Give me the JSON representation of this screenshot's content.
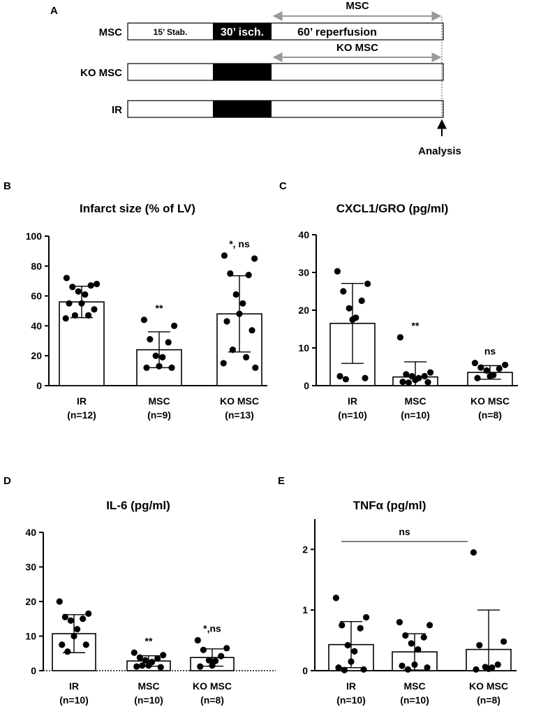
{
  "protocol": {
    "panel_label": "A",
    "rows": [
      {
        "label": "MSC",
        "segments": {
          "stab": "15’ Stab.",
          "isch": "30’ isch.",
          "reperf": "60’ reperfusion"
        },
        "arrow_label": "MSC"
      },
      {
        "label": "KO MSC",
        "segments": {
          "stab": "",
          "isch": "",
          "reperf": ""
        },
        "arrow_label": "KO MSC"
      },
      {
        "label": "IR",
        "segments": {
          "stab": "",
          "isch": "",
          "reperf": ""
        },
        "arrow_label": ""
      }
    ],
    "analysis_label": "Analysis"
  },
  "chart_data": [
    {
      "panel": "B",
      "type": "bar",
      "title": "Infarct size (% of LV)",
      "xlabel": "",
      "ylabel": "",
      "ylim": [
        0,
        100
      ],
      "yticks": [
        "0",
        "20",
        "40",
        "60",
        "80",
        "100"
      ],
      "categories": [
        {
          "name": "IR",
          "n": "(n=12)"
        },
        {
          "name": "MSC",
          "n": "(n=9)"
        },
        {
          "name": "KO MSC",
          "n": "(n=13)"
        }
      ],
      "values": [
        56,
        24,
        48
      ],
      "errors": [
        10.5,
        12,
        25.5
      ],
      "significance": [
        "",
        "**",
        "*, ns"
      ],
      "points": [
        [
          72,
          68,
          66,
          67,
          63,
          61,
          55,
          55,
          51,
          47,
          47,
          45
        ],
        [
          44,
          40,
          31,
          29,
          20,
          19,
          13,
          12,
          12
        ],
        [
          87,
          85,
          75,
          74,
          61,
          55,
          48,
          43,
          37,
          24,
          19,
          15,
          12
        ]
      ],
      "grid": false
    },
    {
      "panel": "C",
      "type": "bar",
      "title": "CXCL1/GRO (pg/ml)",
      "xlabel": "",
      "ylabel": "",
      "ylim": [
        0,
        40
      ],
      "yticks": [
        "0",
        "10",
        "20",
        "30",
        "40"
      ],
      "categories": [
        {
          "name": "IR",
          "n": "(n=10)"
        },
        {
          "name": "MSC",
          "n": "(n=10)"
        },
        {
          "name": "KO MSC",
          "n": "(n=8)"
        }
      ],
      "values": [
        16.5,
        2.3,
        3.5
      ],
      "errors": [
        10.6,
        4,
        1.8
      ],
      "significance": [
        "",
        "**",
        "ns"
      ],
      "points": [
        [
          30.3,
          27,
          25,
          22.5,
          20.5,
          18,
          17.5,
          2.5,
          2,
          1.7
        ],
        [
          12.8,
          3.5,
          3,
          2.5,
          2.5,
          2,
          1.5,
          1,
          0.9,
          0.8
        ],
        [
          6,
          5.5,
          4.8,
          4.5,
          4,
          2.8,
          2.5,
          2
        ]
      ],
      "grid": false
    },
    {
      "panel": "D",
      "type": "bar",
      "title": "IL-6 (pg/ml)",
      "xlabel": "",
      "ylabel": "",
      "ylim": [
        0,
        40
      ],
      "yticks": [
        "0",
        "10",
        "20",
        "30",
        "40"
      ],
      "categories": [
        {
          "name": "IR",
          "n": "(n=10)"
        },
        {
          "name": "MSC",
          "n": "(n=10)"
        },
        {
          "name": "KO MSC",
          "n": "(n=8)"
        }
      ],
      "values": [
        10.7,
        2.8,
        3.8
      ],
      "errors": [
        5.5,
        1.5,
        2.5
      ],
      "significance": [
        "",
        "**",
        "*,ns"
      ],
      "points": [
        [
          20,
          16.5,
          15.5,
          15,
          14.5,
          12,
          10,
          7.5,
          7.5,
          5.5
        ],
        [
          5.2,
          4.5,
          3.8,
          3.5,
          3,
          2.5,
          1.5,
          1.2,
          1,
          1.5
        ],
        [
          8.8,
          6.5,
          6,
          4.2,
          3,
          2.8,
          1.5,
          1.2
        ]
      ],
      "grid": false
    },
    {
      "panel": "E",
      "type": "bar",
      "title": "TNFα (pg/ml)",
      "xlabel": "",
      "ylabel": "",
      "ylim": [
        0,
        2.5
      ],
      "yticks": [
        "0",
        "1",
        "2"
      ],
      "categories": [
        {
          "name": "IR",
          "n": "(n=10)"
        },
        {
          "name": "MSC",
          "n": "(n=10)"
        },
        {
          "name": "KO MSC",
          "n": "(n=8)"
        }
      ],
      "values": [
        0.43,
        0.31,
        0.35
      ],
      "errors": [
        0.38,
        0.3,
        0.65
      ],
      "significance": [
        "",
        "",
        ""
      ],
      "bracket_label": "ns",
      "points": [
        [
          1.2,
          0.88,
          0.75,
          0.7,
          0.42,
          0.32,
          0.15,
          0.05,
          0.02,
          0.01
        ],
        [
          0.8,
          0.75,
          0.58,
          0.55,
          0.45,
          0.35,
          0.1,
          0.08,
          0.05,
          0.02
        ],
        [
          1.95,
          0.48,
          0.42,
          0.1,
          0.06,
          0.05,
          0.03,
          0.02
        ]
      ],
      "grid": false
    }
  ]
}
